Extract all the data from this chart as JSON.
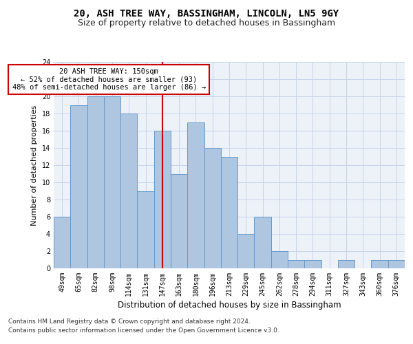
{
  "title1": "20, ASH TREE WAY, BASSINGHAM, LINCOLN, LN5 9GY",
  "title2": "Size of property relative to detached houses in Bassingham",
  "xlabel": "Distribution of detached houses by size in Bassingham",
  "ylabel": "Number of detached properties",
  "categories": [
    "49sqm",
    "65sqm",
    "82sqm",
    "98sqm",
    "114sqm",
    "131sqm",
    "147sqm",
    "163sqm",
    "180sqm",
    "196sqm",
    "213sqm",
    "229sqm",
    "245sqm",
    "262sqm",
    "278sqm",
    "294sqm",
    "311sqm",
    "327sqm",
    "343sqm",
    "360sqm",
    "376sqm"
  ],
  "values": [
    6,
    19,
    20,
    20,
    18,
    9,
    16,
    11,
    17,
    14,
    13,
    4,
    6,
    2,
    1,
    1,
    0,
    1,
    0,
    1,
    1
  ],
  "bar_color": "#aec6e0",
  "bar_edge_color": "#6699cc",
  "bar_linewidth": 0.7,
  "grid_color": "#c8d4e8",
  "vline_x_index": 6,
  "vline_color": "#cc0000",
  "annotation_text": "20 ASH TREE WAY: 150sqm\n← 52% of detached houses are smaller (93)\n48% of semi-detached houses are larger (86) →",
  "annotation_box_color": "#ffffff",
  "annotation_box_edge": "#cc0000",
  "ylim": [
    0,
    24
  ],
  "yticks": [
    0,
    2,
    4,
    6,
    8,
    10,
    12,
    14,
    16,
    18,
    20,
    22,
    24
  ],
  "footnote1": "Contains HM Land Registry data © Crown copyright and database right 2024.",
  "footnote2": "Contains public sector information licensed under the Open Government Licence v3.0.",
  "bg_color": "#edf2f9",
  "title1_fontsize": 10,
  "title2_fontsize": 9,
  "xlabel_fontsize": 8.5,
  "ylabel_fontsize": 8,
  "tick_fontsize": 7,
  "footnote_fontsize": 6.5,
  "annotation_fontsize": 7.5
}
